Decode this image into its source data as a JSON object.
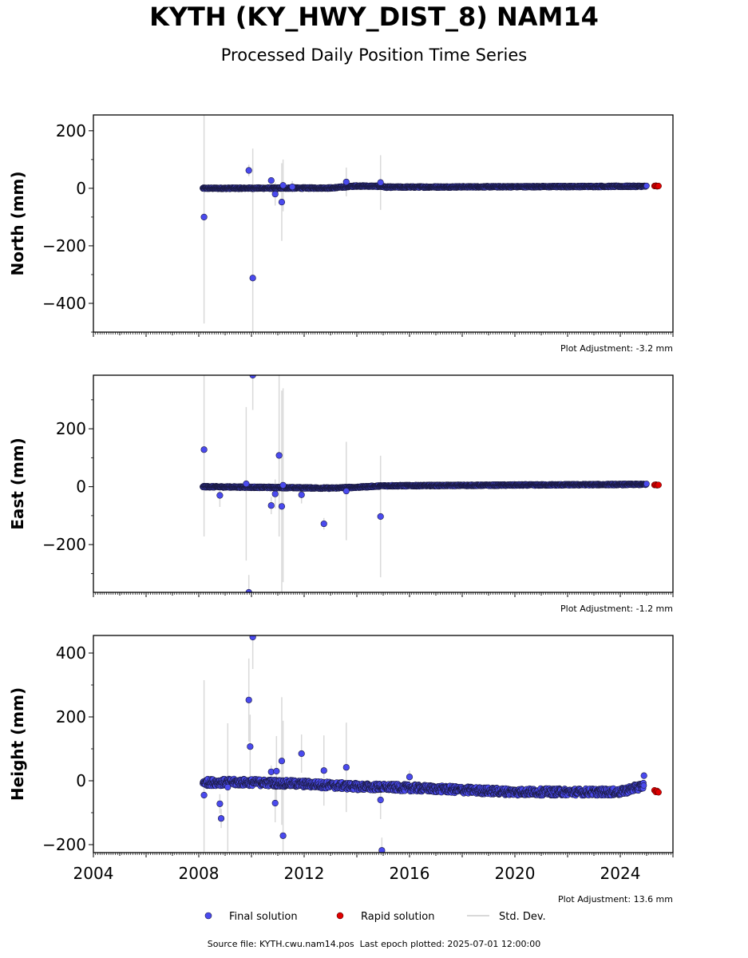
{
  "title": "KYTH (KY_HWY_DIST_8) NAM14",
  "subtitle": "Processed Daily Position Time Series",
  "source": {
    "file_label": "Source file: KYTH.cwu.nam14.pos",
    "last_epoch_label": "Last epoch plotted: 2025-07-01 12:00:00"
  },
  "legend": {
    "final_label": "Final solution",
    "rapid_label": "Rapid solution",
    "stddev_label": "Std. Dev."
  },
  "colors": {
    "final": "#4a4aee",
    "rapid": "#e00000",
    "stddev": "#d9d9d9",
    "marker_edge": "#1a1a40"
  },
  "chart_data": [
    {
      "type": "scatter",
      "ylabel": "North (mm)",
      "adjustment": "Plot Adjustment: -3.2 mm",
      "xlim": [
        2004,
        2026
      ],
      "ylim": [
        -500,
        255
      ],
      "yticks": [
        200,
        0,
        -200,
        -400
      ],
      "ytick_labels": [
        "200",
        "0",
        "−200",
        "−400"
      ],
      "trend": [
        [
          2008.15,
          0
        ],
        [
          2013.0,
          1
        ],
        [
          2014.0,
          8
        ],
        [
          2014.9,
          7
        ],
        [
          2015.1,
          4
        ],
        [
          2025.0,
          7
        ]
      ],
      "trend_noise": 2.5,
      "outliers": [
        {
          "x": 2008.2,
          "y": -100,
          "e": 370
        },
        {
          "x": 2009.9,
          "y": 62,
          "e": 20
        },
        {
          "x": 2010.05,
          "y": -312,
          "e": 450
        },
        {
          "x": 2010.75,
          "y": 27,
          "e": 10
        },
        {
          "x": 2010.9,
          "y": -20,
          "e": 40
        },
        {
          "x": 2011.15,
          "y": -48,
          "e": 135
        },
        {
          "x": 2011.2,
          "y": 10,
          "e": 90
        },
        {
          "x": 2011.55,
          "y": 5,
          "e": 20
        },
        {
          "x": 2013.6,
          "y": 22,
          "e": 50
        },
        {
          "x": 2014.9,
          "y": 20,
          "e": 95
        }
      ],
      "rapid": [
        [
          2025.3,
          8
        ],
        [
          2025.35,
          9
        ],
        [
          2025.4,
          7
        ],
        [
          2025.45,
          8
        ]
      ]
    },
    {
      "type": "scatter",
      "ylabel": "East (mm)",
      "adjustment": "Plot Adjustment: -1.2 mm",
      "xlim": [
        2004,
        2026
      ],
      "ylim": [
        -365,
        385
      ],
      "yticks": [
        200,
        0,
        -200
      ],
      "ytick_labels": [
        "200",
        "0",
        "−200"
      ],
      "trend": [
        [
          2008.15,
          0
        ],
        [
          2013.0,
          -5
        ],
        [
          2014.0,
          -2
        ],
        [
          2015.0,
          3
        ],
        [
          2025.0,
          8
        ]
      ],
      "trend_noise": 2.5,
      "outliers": [
        {
          "x": 2008.2,
          "y": 128,
          "e": 300
        },
        {
          "x": 2008.8,
          "y": -30,
          "e": 40
        },
        {
          "x": 2009.8,
          "y": 10,
          "e": 265
        },
        {
          "x": 2009.9,
          "y": -365,
          "e": 60
        },
        {
          "x": 2010.05,
          "y": 385,
          "e": 120
        },
        {
          "x": 2010.75,
          "y": -65,
          "e": 30
        },
        {
          "x": 2010.9,
          "y": -25,
          "e": 50
        },
        {
          "x": 2011.05,
          "y": 108,
          "e": 280
        },
        {
          "x": 2011.15,
          "y": -68,
          "e": 400
        },
        {
          "x": 2011.2,
          "y": 5,
          "e": 335
        },
        {
          "x": 2011.9,
          "y": -28,
          "e": 30
        },
        {
          "x": 2012.75,
          "y": -128,
          "e": 20
        },
        {
          "x": 2013.6,
          "y": -15,
          "e": 170
        },
        {
          "x": 2014.9,
          "y": -103,
          "e": 210
        }
      ],
      "rapid": [
        [
          2025.3,
          6
        ],
        [
          2025.35,
          7
        ],
        [
          2025.4,
          5
        ],
        [
          2025.45,
          6
        ]
      ]
    },
    {
      "type": "scatter",
      "ylabel": "Height (mm)",
      "adjustment": "Plot Adjustment: 13.6 mm",
      "xlim": [
        2004,
        2026
      ],
      "ylim": [
        -225,
        455
      ],
      "yticks": [
        400,
        200,
        0,
        -200
      ],
      "ytick_labels": [
        "400",
        "200",
        "0",
        "−200"
      ],
      "xticks": [
        2004,
        2008,
        2012,
        2016,
        2020,
        2024
      ],
      "trend": [
        [
          2008.15,
          -5
        ],
        [
          2010.0,
          -5
        ],
        [
          2012.0,
          -10
        ],
        [
          2014.0,
          -18
        ],
        [
          2016.0,
          -22
        ],
        [
          2020.0,
          -35
        ],
        [
          2024.0,
          -35
        ],
        [
          2024.9,
          -15
        ]
      ],
      "trend_noise": 11,
      "outliers": [
        {
          "x": 2008.2,
          "y": -45,
          "e": 360
        },
        {
          "x": 2008.8,
          "y": -72,
          "e": 30
        },
        {
          "x": 2008.85,
          "y": -118,
          "e": 30
        },
        {
          "x": 2009.1,
          "y": -20,
          "e": 200
        },
        {
          "x": 2009.9,
          "y": 253,
          "e": 130
        },
        {
          "x": 2009.95,
          "y": 107,
          "e": 100
        },
        {
          "x": 2010.05,
          "y": 450,
          "e": 100
        },
        {
          "x": 2010.75,
          "y": 28,
          "e": 20
        },
        {
          "x": 2010.9,
          "y": -70,
          "e": 60
        },
        {
          "x": 2010.95,
          "y": 30,
          "e": 110
        },
        {
          "x": 2011.15,
          "y": 62,
          "e": 200
        },
        {
          "x": 2011.2,
          "y": -172,
          "e": 360
        },
        {
          "x": 2011.9,
          "y": 85,
          "e": 60
        },
        {
          "x": 2012.75,
          "y": 32,
          "e": 110
        },
        {
          "x": 2013.6,
          "y": 42,
          "e": 140
        },
        {
          "x": 2014.9,
          "y": -60,
          "e": 60
        },
        {
          "x": 2014.95,
          "y": -218,
          "e": 40
        },
        {
          "x": 2016.0,
          "y": 12,
          "e": 20
        },
        {
          "x": 2024.9,
          "y": 16,
          "e": 10
        }
      ],
      "rapid": [
        [
          2025.3,
          -30
        ],
        [
          2025.35,
          -35
        ],
        [
          2025.4,
          -32
        ],
        [
          2025.45,
          -36
        ]
      ]
    }
  ]
}
